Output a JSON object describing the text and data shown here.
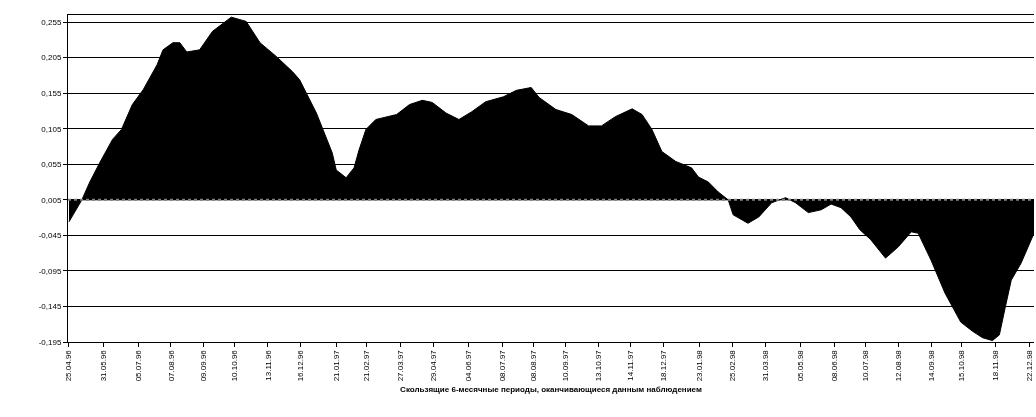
{
  "chart_data": {
    "type": "area",
    "xlabel": "Скользящие 6-месячные периоды, оканчивающиеся данным наблюдением",
    "color": "#000000",
    "x": [
      "1996-04-26",
      "1996-05-09",
      "1996-05-17",
      "1996-05-27",
      "1996-06-09",
      "1996-06-18",
      "1996-06-29",
      "1996-07-10",
      "1996-07-24",
      "1996-07-30",
      "1996-08-09",
      "1996-08-16",
      "1996-08-23",
      "1996-09-05",
      "1996-09-18",
      "1996-10-07",
      "1996-10-22",
      "1996-11-05",
      "1996-11-22",
      "1996-12-08",
      "1996-12-15",
      "1997-01-01",
      "1997-01-17",
      "1997-01-21",
      "1997-01-31",
      "1997-02-08",
      "1997-02-13",
      "1997-02-20",
      "1997-03-02",
      "1997-03-23",
      "1997-04-05",
      "1997-04-18",
      "1997-04-28",
      "1997-05-12",
      "1997-05-25",
      "1997-06-07",
      "1997-06-21",
      "1997-07-09",
      "1997-07-22",
      "1997-08-06",
      "1997-08-14",
      "1997-08-31",
      "1997-09-16",
      "1997-10-03",
      "1997-10-16",
      "1997-10-30",
      "1997-11-16",
      "1997-11-26",
      "1997-12-06",
      "1997-12-16",
      "1997-12-30",
      "1998-01-15",
      "1998-01-22",
      "1998-02-01",
      "1998-02-11",
      "1998-02-21",
      "1998-02-26",
      "1998-03-13",
      "1998-03-24",
      "1998-04-06",
      "1998-04-20",
      "1998-04-30",
      "1998-05-13",
      "1998-05-26",
      "1998-06-05",
      "1998-06-15",
      "1998-06-25",
      "1998-07-04",
      "1998-07-15",
      "1998-07-30",
      "1998-08-12",
      "1998-08-25",
      "1998-09-01",
      "1998-09-14",
      "1998-09-28",
      "1998-10-14",
      "1998-10-26",
      "1998-11-05",
      "1998-11-15",
      "1998-11-22",
      "1998-11-28",
      "1998-12-04",
      "1998-12-14",
      "1998-12-27"
    ],
    "values": [
      -0.026,
      0.005,
      0.03,
      0.057,
      0.09,
      0.104,
      0.139,
      0.16,
      0.195,
      0.216,
      0.226,
      0.226,
      0.213,
      0.216,
      0.242,
      0.262,
      0.256,
      0.226,
      0.206,
      0.185,
      0.174,
      0.127,
      0.071,
      0.047,
      0.036,
      0.05,
      0.075,
      0.104,
      0.118,
      0.125,
      0.139,
      0.145,
      0.142,
      0.127,
      0.118,
      0.129,
      0.143,
      0.15,
      0.159,
      0.163,
      0.149,
      0.132,
      0.125,
      0.109,
      0.109,
      0.122,
      0.133,
      0.125,
      0.104,
      0.073,
      0.059,
      0.05,
      0.037,
      0.03,
      0.016,
      0.005,
      -0.016,
      -0.028,
      -0.019,
      0.001,
      0.008,
      0.001,
      -0.013,
      -0.009,
      -0.001,
      -0.006,
      -0.019,
      -0.037,
      -0.051,
      -0.077,
      -0.061,
      -0.04,
      -0.042,
      -0.08,
      -0.126,
      -0.167,
      -0.18,
      -0.189,
      -0.193,
      -0.185,
      -0.146,
      -0.108,
      -0.084,
      -0.042
    ],
    "ref_lines": [
      {
        "axis": "y",
        "value": 0.005,
        "color": "#808080",
        "line_style": "dotted"
      }
    ],
    "xlim": [
      "1996-04-25",
      "1998-12-27"
    ],
    "xticks": [
      {
        "value": "1996-04-25",
        "label": "25.04.96"
      },
      {
        "value": "1996-05-31",
        "label": "31.05.96"
      },
      {
        "value": "1996-07-05",
        "label": "05.07.96"
      },
      {
        "value": "1996-08-07",
        "label": "07.08.96"
      },
      {
        "value": "1996-09-09",
        "label": "09.09.96"
      },
      {
        "value": "1996-10-10",
        "label": "10.10.96"
      },
      {
        "value": "1996-11-13",
        "label": "13.11.96"
      },
      {
        "value": "1996-12-16",
        "label": "16.12.96"
      },
      {
        "value": "1997-01-21",
        "label": "21.01.97"
      },
      {
        "value": "1997-02-21",
        "label": "21.02.97"
      },
      {
        "value": "1997-03-27",
        "label": "27.03.97"
      },
      {
        "value": "1997-04-29",
        "label": "29.04.97"
      },
      {
        "value": "1997-06-04",
        "label": "04.06.97"
      },
      {
        "value": "1997-07-08",
        "label": "08.07.97"
      },
      {
        "value": "1997-08-08",
        "label": "08.08.97"
      },
      {
        "value": "1997-09-10",
        "label": "10.09.97"
      },
      {
        "value": "1997-10-13",
        "label": "13.10.97"
      },
      {
        "value": "1997-11-14",
        "label": "14.11.97"
      },
      {
        "value": "1997-12-18",
        "label": "18.12.97"
      },
      {
        "value": "1998-01-23",
        "label": "23.01.98"
      },
      {
        "value": "1998-02-25",
        "label": "25.02.98"
      },
      {
        "value": "1998-03-31",
        "label": "31.03.98"
      },
      {
        "value": "1998-05-05",
        "label": "05.05.98"
      },
      {
        "value": "1998-06-08",
        "label": "08.06.98"
      },
      {
        "value": "1998-07-10",
        "label": "10.07.98"
      },
      {
        "value": "1998-08-12",
        "label": "12.08.98"
      },
      {
        "value": "1998-09-14",
        "label": "14.09.98"
      },
      {
        "value": "1998-10-15",
        "label": "15.10.98"
      },
      {
        "value": "1998-11-18",
        "label": "18.11.98"
      },
      {
        "value": "1998-12-22",
        "label": "22.12.98"
      }
    ],
    "ylim": [
      -0.195,
      0.265
    ],
    "yticks": [
      {
        "value": -0.195,
        "label": "-0,195"
      },
      {
        "value": -0.145,
        "label": "-0,145"
      },
      {
        "value": -0.095,
        "label": "-0,095"
      },
      {
        "value": -0.045,
        "label": "-0,045"
      },
      {
        "value": 0.005,
        "label": "0,005"
      },
      {
        "value": 0.055,
        "label": "0,055"
      },
      {
        "value": 0.105,
        "label": "0,105"
      },
      {
        "value": 0.155,
        "label": "0,155"
      },
      {
        "value": 0.205,
        "label": "0,205"
      },
      {
        "value": 0.255,
        "label": "0,255"
      }
    ],
    "grid": "y"
  }
}
